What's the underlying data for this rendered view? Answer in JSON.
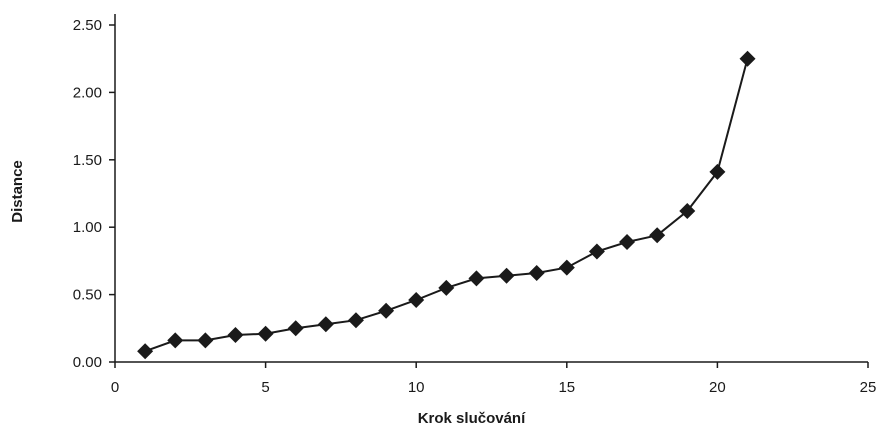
{
  "chart_data": {
    "type": "line",
    "xlabel": "Krok slučování",
    "ylabel": "Distance",
    "xlim": [
      0,
      25
    ],
    "ylim": [
      0,
      2.5
    ],
    "x_ticks": [
      "0",
      "5",
      "10",
      "15",
      "20",
      "25"
    ],
    "y_ticks": [
      "0.00",
      "0.50",
      "1.00",
      "1.50",
      "2.00",
      "2.50"
    ],
    "grid": false,
    "marker": "diamond",
    "colors": {
      "line": "#1a1a1a",
      "marker": "#1a1a1a"
    },
    "series": [
      {
        "x": [
          1,
          2,
          3,
          4,
          5,
          6,
          7,
          8,
          9,
          10,
          11,
          12,
          13,
          14,
          15,
          16,
          17,
          18,
          19,
          20,
          21
        ],
        "values": [
          0.08,
          0.16,
          0.16,
          0.2,
          0.21,
          0.25,
          0.28,
          0.31,
          0.38,
          0.46,
          0.55,
          0.62,
          0.64,
          0.66,
          0.7,
          0.82,
          0.89,
          0.94,
          1.12,
          1.41,
          2.25
        ]
      }
    ]
  }
}
